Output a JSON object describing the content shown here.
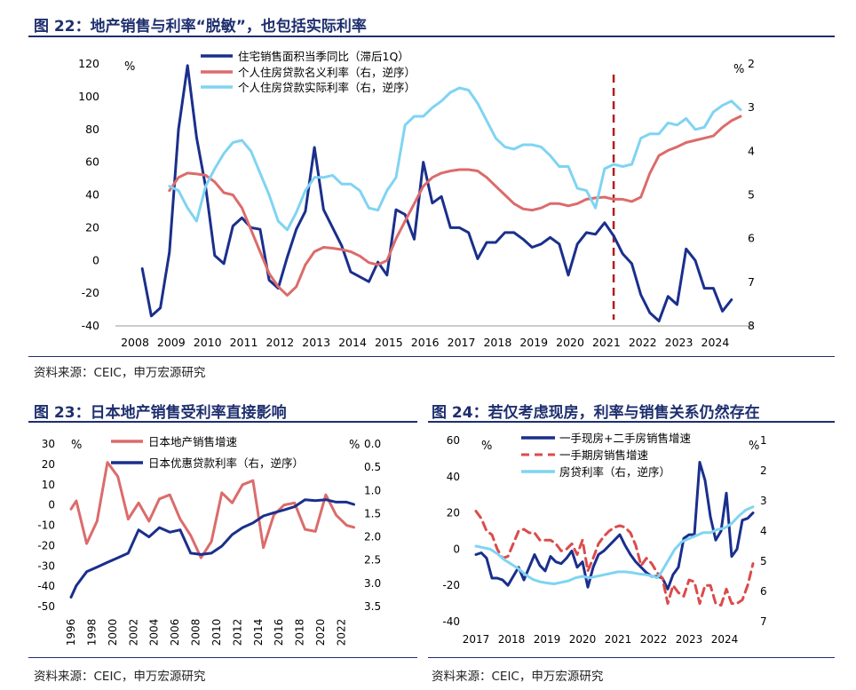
{
  "chart_data": [
    {
      "type": "line",
      "title": "图 22：地产销售与利率“脱敏”，也包括实际利率",
      "source": "资料来源：CEIC，申万宏源研究",
      "x_tick_labels": [
        "2008",
        "2009",
        "2010",
        "2011",
        "2012",
        "2013",
        "2014",
        "2015",
        "2016",
        "2017",
        "2018",
        "2019",
        "2020",
        "2021",
        "2022",
        "2023",
        "2024"
      ],
      "xlim": [
        2008,
        2024.7
      ],
      "y_left": {
        "unit": "%",
        "lim": [
          -40,
          120
        ],
        "ticks": [
          "-40",
          "-20",
          "0",
          "20",
          "40",
          "60",
          "80",
          "100",
          "120"
        ]
      },
      "y_right": {
        "unit": "%",
        "lim": [
          2,
          8
        ],
        "inverted": true,
        "ticks": [
          "2",
          "3",
          "4",
          "5",
          "6",
          "7",
          "8"
        ]
      },
      "vline_x": 2021.2,
      "series": [
        {
          "name": "住宅销售面积当季同比（滞后1Q）",
          "color": "#1a2f8c",
          "axis": "left",
          "x": [
            2008.2,
            2008.45,
            2008.7,
            2008.95,
            2009.2,
            2009.45,
            2009.7,
            2009.95,
            2010.2,
            2010.45,
            2010.7,
            2010.95,
            2011.2,
            2011.45,
            2011.7,
            2011.95,
            2012.2,
            2012.45,
            2012.7,
            2012.95,
            2013.2,
            2013.45,
            2013.7,
            2013.95,
            2014.2,
            2014.45,
            2014.7,
            2014.95,
            2015.2,
            2015.45,
            2015.7,
            2015.95,
            2016.2,
            2016.45,
            2016.7,
            2016.95,
            2017.2,
            2017.45,
            2017.7,
            2017.95,
            2018.2,
            2018.45,
            2018.7,
            2018.95,
            2019.2,
            2019.45,
            2019.7,
            2019.95,
            2020.2,
            2020.45,
            2020.7,
            2020.95,
            2021.2,
            2021.45,
            2021.7,
            2021.95,
            2022.2,
            2022.45,
            2022.7,
            2022.95,
            2023.2,
            2023.45,
            2023.7,
            2023.95,
            2024.2,
            2024.45
          ],
          "y": [
            -5,
            -34,
            -29,
            5,
            80,
            119,
            75,
            45,
            3,
            -2,
            21,
            26,
            20,
            19,
            -12,
            -17,
            2,
            19,
            30,
            69,
            31,
            20,
            9,
            -7,
            -10,
            -13,
            -1,
            -9,
            31,
            28,
            13,
            60,
            35,
            39,
            20,
            20,
            17,
            1,
            11,
            11,
            17,
            17,
            13,
            8,
            10,
            14,
            10,
            -9,
            10,
            17,
            16,
            23,
            15,
            4,
            -2,
            -21,
            -32,
            -37,
            -22,
            -27,
            7,
            0,
            -17,
            -17,
            -31,
            -24
          ]
        },
        {
          "name": "个人住房贷款名义利率（右，逆序）",
          "color": "#dc6b6b",
          "axis": "right",
          "x": [
            2008.95,
            2009.2,
            2009.45,
            2009.7,
            2009.95,
            2010.2,
            2010.45,
            2010.7,
            2010.95,
            2011.2,
            2011.45,
            2011.7,
            2011.95,
            2012.2,
            2012.45,
            2012.7,
            2012.95,
            2013.2,
            2013.45,
            2013.7,
            2013.95,
            2014.2,
            2014.45,
            2014.7,
            2014.95,
            2015.2,
            2015.45,
            2015.7,
            2015.95,
            2016.2,
            2016.45,
            2016.7,
            2016.95,
            2017.2,
            2017.45,
            2017.7,
            2017.95,
            2018.2,
            2018.45,
            2018.7,
            2018.95,
            2019.2,
            2019.45,
            2019.7,
            2019.95,
            2020.2,
            2020.45,
            2020.7,
            2020.95,
            2021.2,
            2021.45,
            2021.7,
            2021.95,
            2022.2,
            2022.45,
            2022.7,
            2022.95,
            2023.2,
            2023.45,
            2023.7,
            2023.95,
            2024.2,
            2024.45,
            2024.7
          ],
          "y": [
            4.9,
            4.6,
            4.5,
            4.52,
            4.55,
            4.7,
            4.95,
            5.0,
            5.3,
            5.8,
            6.3,
            6.8,
            7.1,
            7.3,
            7.1,
            6.6,
            6.3,
            6.2,
            6.22,
            6.25,
            6.3,
            6.4,
            6.55,
            6.6,
            6.5,
            6.0,
            5.6,
            5.2,
            4.8,
            4.6,
            4.5,
            4.45,
            4.42,
            4.42,
            4.45,
            4.6,
            4.8,
            5.0,
            5.2,
            5.32,
            5.35,
            5.3,
            5.2,
            5.2,
            5.25,
            5.2,
            5.1,
            5.07,
            5.05,
            5.1,
            5.1,
            5.15,
            5.05,
            4.5,
            4.1,
            3.98,
            3.9,
            3.8,
            3.75,
            3.7,
            3.65,
            3.45,
            3.3,
            3.2
          ]
        },
        {
          "name": "个人住房贷款实际利率（右，逆序）",
          "color": "#7fd4f2",
          "axis": "right",
          "x": [
            2008.95,
            2009.2,
            2009.45,
            2009.7,
            2009.95,
            2010.2,
            2010.45,
            2010.7,
            2010.95,
            2011.2,
            2011.45,
            2011.7,
            2011.95,
            2012.2,
            2012.45,
            2012.7,
            2012.95,
            2013.2,
            2013.45,
            2013.7,
            2013.95,
            2014.2,
            2014.45,
            2014.7,
            2014.95,
            2015.2,
            2015.45,
            2015.7,
            2015.95,
            2016.2,
            2016.45,
            2016.7,
            2016.95,
            2017.2,
            2017.45,
            2017.7,
            2017.95,
            2018.2,
            2018.45,
            2018.7,
            2018.95,
            2019.2,
            2019.45,
            2019.7,
            2019.95,
            2020.2,
            2020.45,
            2020.7,
            2020.95,
            2021.2,
            2021.45,
            2021.7,
            2021.95,
            2022.2,
            2022.45,
            2022.7,
            2022.95,
            2023.2,
            2023.45,
            2023.7,
            2023.95,
            2024.2,
            2024.45,
            2024.7
          ],
          "y": [
            4.8,
            4.9,
            5.3,
            5.6,
            4.8,
            4.4,
            4.05,
            3.8,
            3.75,
            4.0,
            4.5,
            5.0,
            5.6,
            5.8,
            5.4,
            4.9,
            4.6,
            4.6,
            4.55,
            4.75,
            4.75,
            4.9,
            5.3,
            5.35,
            4.9,
            4.6,
            3.4,
            3.2,
            3.2,
            3.0,
            2.85,
            2.65,
            2.55,
            2.6,
            2.9,
            3.3,
            3.7,
            3.9,
            3.95,
            3.85,
            3.85,
            3.9,
            4.1,
            4.35,
            4.35,
            4.85,
            4.9,
            5.3,
            4.4,
            4.3,
            4.35,
            4.3,
            3.7,
            3.6,
            3.6,
            3.35,
            3.4,
            3.25,
            3.5,
            3.45,
            3.1,
            2.95,
            2.85,
            3.05
          ]
        }
      ]
    },
    {
      "type": "line",
      "title": "图 23：日本地产销售受利率直接影响",
      "source": "资料来源：CEIC，申万宏源研究",
      "x_tick_labels": [
        "1996",
        "1998",
        "2000",
        "2002",
        "2004",
        "2006",
        "2008",
        "2010",
        "2012",
        "2014",
        "2016",
        "2018",
        "2020",
        "2022"
      ],
      "xlim": [
        1996,
        2023.5
      ],
      "y_left": {
        "unit": "%",
        "lim": [
          -50,
          30
        ],
        "ticks": [
          "-50",
          "-40",
          "-30",
          "-20",
          "-10",
          "0",
          "10",
          "20",
          "30"
        ]
      },
      "y_right": {
        "unit": "%",
        "lim": [
          0,
          3.5
        ],
        "inverted": true,
        "ticks": [
          "0.0",
          "0.5",
          "1.0",
          "1.5",
          "2.0",
          "2.5",
          "3.0",
          "3.5"
        ]
      },
      "series": [
        {
          "name": "日本地产销售增速",
          "color": "#dc6b6b",
          "axis": "left",
          "x": [
            1996,
            1996.5,
            1997.5,
            1998.5,
            1999.5,
            2000.5,
            2001.5,
            2002.5,
            2003.5,
            2004.5,
            2005.5,
            2006.5,
            2007.5,
            2008.5,
            2009.5,
            2010.5,
            2011.5,
            2012.5,
            2013.5,
            2014.5,
            2015.5,
            2016.5,
            2017.5,
            2018.5,
            2019.5,
            2020.5,
            2021.5,
            2022.5,
            2023.2
          ],
          "y": [
            -2,
            2,
            -19,
            -8,
            21,
            14,
            -7,
            1,
            -8,
            3,
            5,
            -7,
            -15,
            -26,
            -18,
            6,
            1,
            10,
            12,
            -21,
            -5,
            0,
            1,
            -12,
            -13,
            5,
            -5,
            -10,
            -11
          ]
        },
        {
          "name": "日本优惠贷款利率（右，逆序）",
          "color": "#1a2f8c",
          "axis": "right",
          "x": [
            1996,
            1996.5,
            1997.5,
            1998.5,
            1999.5,
            2000.5,
            2001.5,
            2002.5,
            2003.5,
            2004.5,
            2005.5,
            2006.5,
            2007.5,
            2008.5,
            2009.5,
            2010.5,
            2011.5,
            2012.5,
            2013.5,
            2014.5,
            2015.5,
            2016.5,
            2017.5,
            2018.5,
            2019.5,
            2020.5,
            2021.5,
            2022.5,
            2023.2
          ],
          "y": [
            3.3,
            3.05,
            2.75,
            2.65,
            2.55,
            2.45,
            2.35,
            1.85,
            2.0,
            1.8,
            1.9,
            1.85,
            2.35,
            2.38,
            2.35,
            2.2,
            1.95,
            1.8,
            1.7,
            1.55,
            1.48,
            1.42,
            1.35,
            1.2,
            1.22,
            1.2,
            1.25,
            1.25,
            1.3
          ]
        }
      ]
    },
    {
      "type": "line",
      "title": "图 24：若仅考虑现房，利率与销售关系仍然存在",
      "source": "资料来源：CEIC，申万宏源研究",
      "x_tick_labels": [
        "2017",
        "2018",
        "2019",
        "2020",
        "2021",
        "2022",
        "2023",
        "2024"
      ],
      "xlim": [
        2017,
        2024.8
      ],
      "y_left": {
        "unit": "%",
        "lim": [
          -40,
          60
        ],
        "ticks": [
          "-40",
          "-20",
          "0",
          "20",
          "40",
          "60"
        ]
      },
      "y_right": {
        "unit": "%",
        "lim": [
          1,
          7
        ],
        "inverted": true,
        "ticks": [
          "1",
          "2",
          "3",
          "4",
          "5",
          "6",
          "7"
        ]
      },
      "series": [
        {
          "name": "一手现房+二手房销售增速",
          "color": "#1a2f8c",
          "axis": "left",
          "style": "solid",
          "x": [
            2017,
            2017.15,
            2017.3,
            2017.45,
            2017.6,
            2017.75,
            2017.9,
            2018.05,
            2018.2,
            2018.35,
            2018.5,
            2018.65,
            2018.8,
            2018.95,
            2019.1,
            2019.25,
            2019.4,
            2019.55,
            2019.7,
            2019.85,
            2020,
            2020.15,
            2020.3,
            2020.45,
            2020.6,
            2020.75,
            2020.9,
            2021.05,
            2021.2,
            2021.35,
            2021.5,
            2021.65,
            2021.8,
            2021.95,
            2022.1,
            2022.25,
            2022.4,
            2022.55,
            2022.7,
            2022.85,
            2023,
            2023.15,
            2023.3,
            2023.45,
            2023.6,
            2023.75,
            2023.9,
            2024.05,
            2024.2,
            2024.35,
            2024.5,
            2024.65,
            2024.8
          ],
          "y": [
            -3,
            -2,
            -5,
            -16,
            -16,
            -17,
            -20,
            -15,
            -10,
            -17,
            -10,
            -3,
            -9,
            -12,
            -4,
            -7,
            -8,
            -5,
            -1,
            -10,
            -7,
            -21,
            -10,
            -3,
            -1,
            2,
            5,
            8,
            2,
            -3,
            -7,
            -10,
            -13,
            -15,
            -15,
            -16,
            -22,
            -14,
            -10,
            6,
            8,
            8,
            48,
            38,
            18,
            5,
            10,
            31,
            -4,
            0,
            16,
            17,
            20
          ]
        },
        {
          "name": "一手期房销售增速",
          "color": "#dc4b4b",
          "axis": "left",
          "style": "dashed",
          "x": [
            2017,
            2017.15,
            2017.3,
            2017.45,
            2017.6,
            2017.75,
            2017.9,
            2018.05,
            2018.2,
            2018.35,
            2018.5,
            2018.65,
            2018.8,
            2018.95,
            2019.1,
            2019.25,
            2019.4,
            2019.55,
            2019.7,
            2019.85,
            2020,
            2020.15,
            2020.3,
            2020.45,
            2020.6,
            2020.75,
            2020.9,
            2021.05,
            2021.2,
            2021.35,
            2021.5,
            2021.65,
            2021.8,
            2021.95,
            2022.1,
            2022.25,
            2022.4,
            2022.55,
            2022.7,
            2022.85,
            2023,
            2023.15,
            2023.3,
            2023.45,
            2023.6,
            2023.75,
            2023.9,
            2024.05,
            2024.2,
            2024.35,
            2024.5,
            2024.65,
            2024.8
          ],
          "y": [
            21,
            17,
            10,
            8,
            0,
            -5,
            -4,
            3,
            10,
            11,
            9,
            9,
            5,
            5,
            5,
            3,
            -1,
            0,
            3,
            -3,
            5,
            -12,
            -5,
            3,
            7,
            10,
            12,
            13,
            12,
            9,
            2,
            -9,
            -5,
            -8,
            -13,
            -16,
            -30,
            -20,
            -24,
            -26,
            -17,
            -18,
            -30,
            -20,
            -20,
            -30,
            -31,
            -22,
            -30,
            -30,
            -28,
            -20,
            -8
          ]
        },
        {
          "name": "房贷利率（右，逆序）",
          "color": "#7fd4f2",
          "axis": "right",
          "style": "solid",
          "x": [
            2017,
            2017.2,
            2017.4,
            2017.6,
            2017.8,
            2018,
            2018.2,
            2018.4,
            2018.6,
            2018.8,
            2019,
            2019.2,
            2019.4,
            2019.6,
            2019.8,
            2020,
            2020.2,
            2020.4,
            2020.6,
            2020.8,
            2021,
            2021.2,
            2021.4,
            2021.6,
            2021.8,
            2022,
            2022.1,
            2022.2,
            2022.4,
            2022.6,
            2022.8,
            2023,
            2023.2,
            2023.4,
            2023.6,
            2023.8,
            2024,
            2024.2,
            2024.4,
            2024.6,
            2024.8
          ],
          "y": [
            4.5,
            4.55,
            4.6,
            4.75,
            4.95,
            5.1,
            5.25,
            5.45,
            5.6,
            5.68,
            5.72,
            5.75,
            5.7,
            5.65,
            5.55,
            5.5,
            5.55,
            5.5,
            5.45,
            5.4,
            5.35,
            5.35,
            5.38,
            5.42,
            5.45,
            5.5,
            5.55,
            5.4,
            5.0,
            4.6,
            4.35,
            4.25,
            4.15,
            4.05,
            4.05,
            3.95,
            3.9,
            3.75,
            3.5,
            3.3,
            3.2
          ]
        }
      ]
    }
  ]
}
